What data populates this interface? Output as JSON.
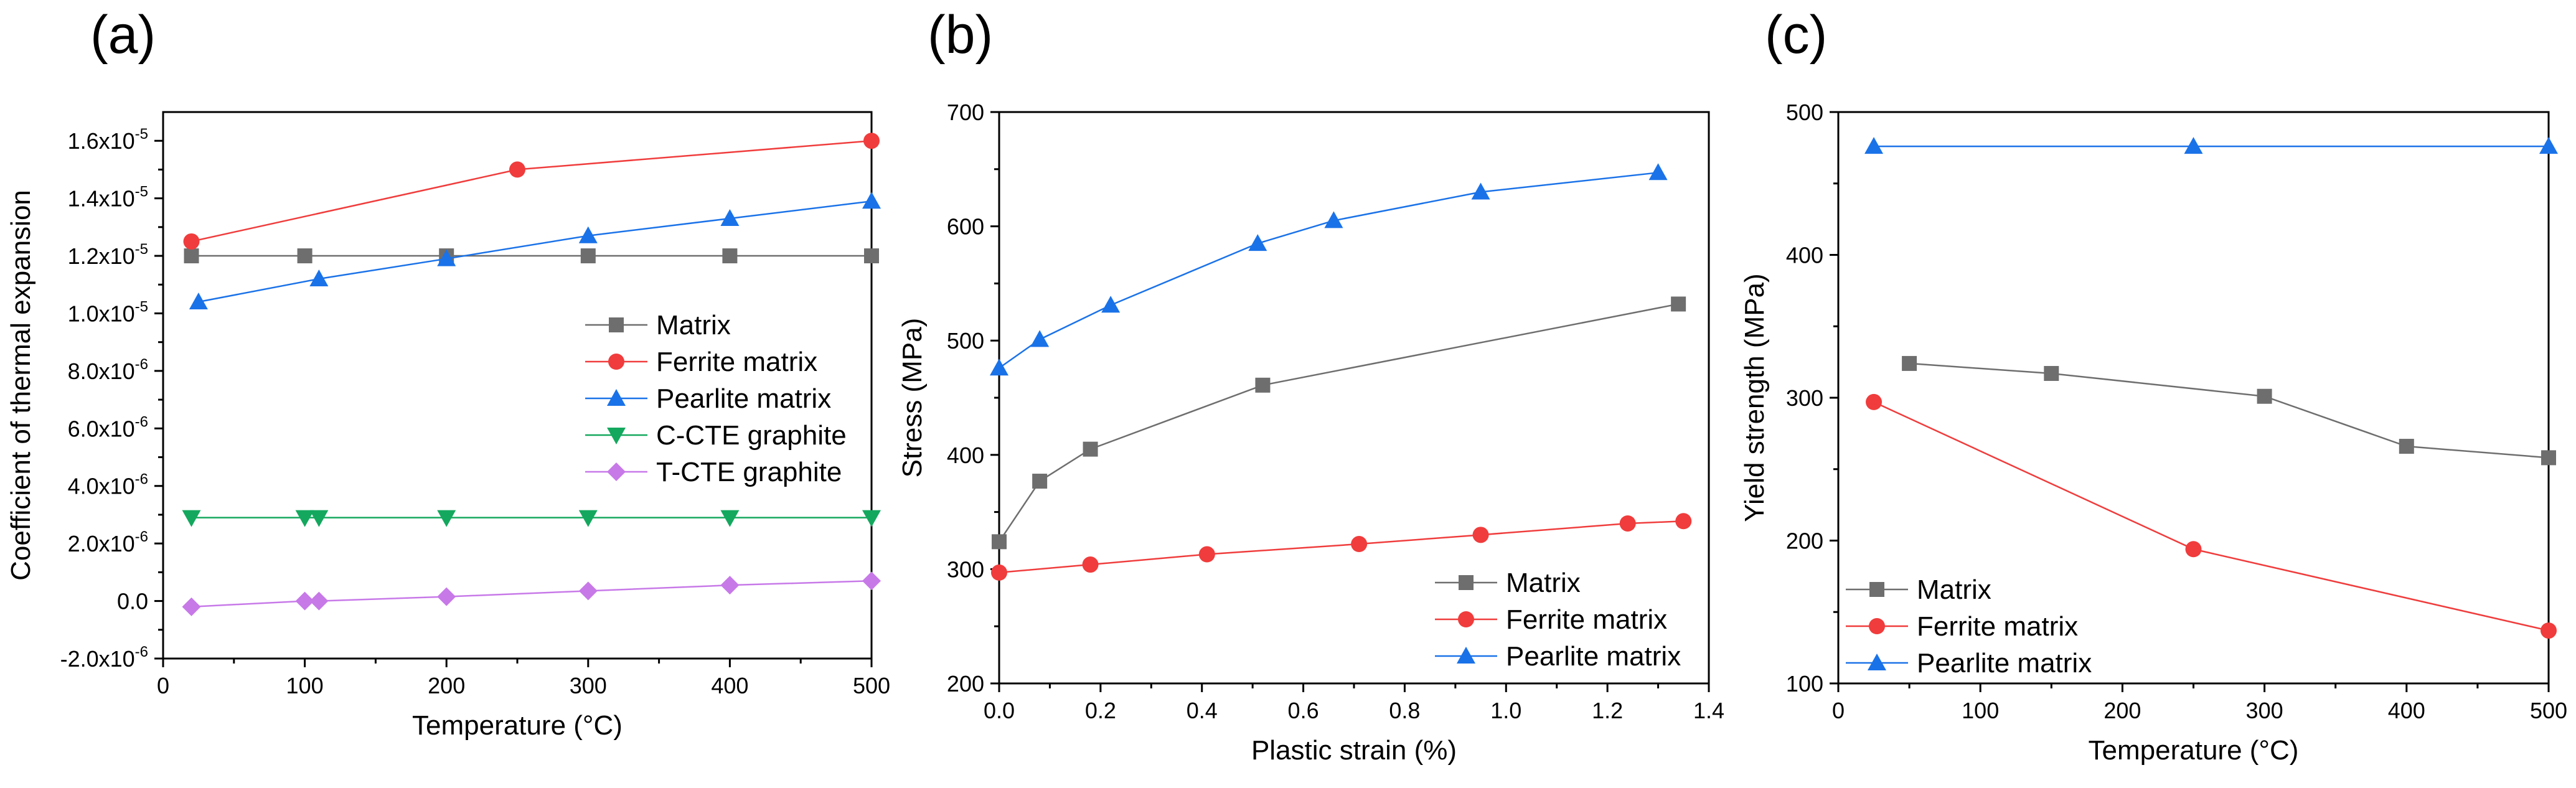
{
  "colors": {
    "matrix": "#6e6e6e",
    "ferrite": "#f03c3c",
    "pearlite": "#1a72e8",
    "c_cte": "#14a85e",
    "t_cte": "#c779e8"
  },
  "chart_data": [
    {
      "panel": "(a)",
      "type": "line",
      "xlabel": "Temperature (°C)",
      "ylabel": "Coefficient of thermal expansion",
      "xlim": [
        0,
        500
      ],
      "ylim": [
        -2e-06,
        1.7e-05
      ],
      "xticks": [
        0,
        100,
        200,
        300,
        400,
        500
      ],
      "xtick_labels": [
        "0",
        "100",
        "200",
        "300",
        "400",
        "500"
      ],
      "yticks": [
        {
          "value": -2e-06,
          "mant": "-2.0x10",
          "exp": "-6"
        },
        {
          "value": 0,
          "mant": "0.0",
          "exp": ""
        },
        {
          "value": 2e-06,
          "mant": "2.0x10",
          "exp": "-6"
        },
        {
          "value": 4e-06,
          "mant": "4.0x10",
          "exp": "-6"
        },
        {
          "value": 6e-06,
          "mant": "6.0x10",
          "exp": "-6"
        },
        {
          "value": 8e-06,
          "mant": "8.0x10",
          "exp": "-6"
        },
        {
          "value": 1e-05,
          "mant": "1.0x10",
          "exp": "-5"
        },
        {
          "value": 1.2e-05,
          "mant": "1.2x10",
          "exp": "-5"
        },
        {
          "value": 1.4e-05,
          "mant": "1.4x10",
          "exp": "-5"
        },
        {
          "value": 1.6e-05,
          "mant": "1.6x10",
          "exp": "-5"
        }
      ],
      "legend_position": "middle-right",
      "series": [
        {
          "name": "Matrix",
          "color_key": "matrix",
          "marker": "square",
          "x": [
            20,
            100,
            200,
            300,
            400,
            500
          ],
          "y": [
            1.2e-05,
            1.2e-05,
            1.2e-05,
            1.2e-05,
            1.2e-05,
            1.2e-05
          ]
        },
        {
          "name": "Ferrite matrix",
          "color_key": "ferrite",
          "marker": "circle",
          "x": [
            20,
            250,
            500
          ],
          "y": [
            1.25e-05,
            1.5e-05,
            1.6e-05
          ]
        },
        {
          "name": "Pearlite matrix",
          "color_key": "pearlite",
          "marker": "triangle-up",
          "x": [
            25,
            110,
            200,
            300,
            400,
            500
          ],
          "y": [
            1.04e-05,
            1.12e-05,
            1.19e-05,
            1.27e-05,
            1.33e-05,
            1.39e-05
          ]
        },
        {
          "name": "C-CTE graphite",
          "color_key": "c_cte",
          "marker": "triangle-down",
          "x": [
            20,
            100,
            110,
            200,
            300,
            400,
            500
          ],
          "y": [
            2.9e-06,
            2.9e-06,
            2.9e-06,
            2.9e-06,
            2.9e-06,
            2.9e-06,
            2.9e-06
          ]
        },
        {
          "name": "T-CTE graphite",
          "color_key": "t_cte",
          "marker": "diamond",
          "x": [
            20,
            100,
            110,
            200,
            300,
            400,
            500
          ],
          "y": [
            -2e-07,
            0,
            0,
            1.5e-07,
            3.5e-07,
            5.5e-07,
            7e-07
          ]
        }
      ]
    },
    {
      "panel": "(b)",
      "type": "line",
      "xlabel": "Plastic strain (%)",
      "ylabel": "Stress (MPa)",
      "xlim": [
        0,
        1.4
      ],
      "ylim": [
        200,
        700
      ],
      "xticks": [
        0,
        0.2,
        0.4,
        0.6,
        0.8,
        1.0,
        1.2,
        1.4
      ],
      "xtick_labels": [
        "0.0",
        "0.2",
        "0.4",
        "0.6",
        "0.8",
        "1.0",
        "1.2",
        "1.4"
      ],
      "yticks": [
        200,
        300,
        400,
        500,
        600,
        700
      ],
      "ytick_labels": [
        "200",
        "300",
        "400",
        "500",
        "600",
        "700"
      ],
      "legend_position": "bottom-right",
      "series": [
        {
          "name": "Matrix",
          "color_key": "matrix",
          "marker": "square",
          "x": [
            0,
            0.08,
            0.18,
            0.52,
            1.34
          ],
          "y": [
            324,
            377,
            405,
            461,
            532
          ]
        },
        {
          "name": "Ferrite matrix",
          "color_key": "ferrite",
          "marker": "circle",
          "x": [
            0,
            0.18,
            0.41,
            0.71,
            0.95,
            1.24,
            1.35
          ],
          "y": [
            297,
            304,
            313,
            322,
            330,
            340,
            342
          ]
        },
        {
          "name": "Pearlite matrix",
          "color_key": "pearlite",
          "marker": "triangle-up",
          "x": [
            0,
            0.08,
            0.22,
            0.51,
            0.66,
            0.95,
            1.3
          ],
          "y": [
            476,
            501,
            531,
            585,
            605,
            630,
            647
          ]
        }
      ]
    },
    {
      "panel": "(c)",
      "type": "line",
      "xlabel": "Temperature (°C)",
      "ylabel": "Yield strength (MPa)",
      "xlim": [
        0,
        500
      ],
      "ylim": [
        100,
        500
      ],
      "xticks": [
        0,
        100,
        200,
        300,
        400,
        500
      ],
      "xtick_labels": [
        "0",
        "100",
        "200",
        "300",
        "400",
        "500"
      ],
      "yticks": [
        100,
        200,
        300,
        400,
        500
      ],
      "ytick_labels": [
        "100",
        "200",
        "300",
        "400",
        "500"
      ],
      "legend_position": "bottom-left",
      "series": [
        {
          "name": "Matrix",
          "color_key": "matrix",
          "marker": "square",
          "x": [
            50,
            150,
            300,
            400,
            500
          ],
          "y": [
            324,
            317,
            301,
            266,
            258
          ]
        },
        {
          "name": "Ferrite matrix",
          "color_key": "ferrite",
          "marker": "circle",
          "x": [
            25,
            250,
            500
          ],
          "y": [
            297,
            194,
            137
          ]
        },
        {
          "name": "Pearlite matrix",
          "color_key": "pearlite",
          "marker": "triangle-up",
          "x": [
            25,
            250,
            500
          ],
          "y": [
            476,
            476,
            476
          ]
        }
      ]
    }
  ]
}
